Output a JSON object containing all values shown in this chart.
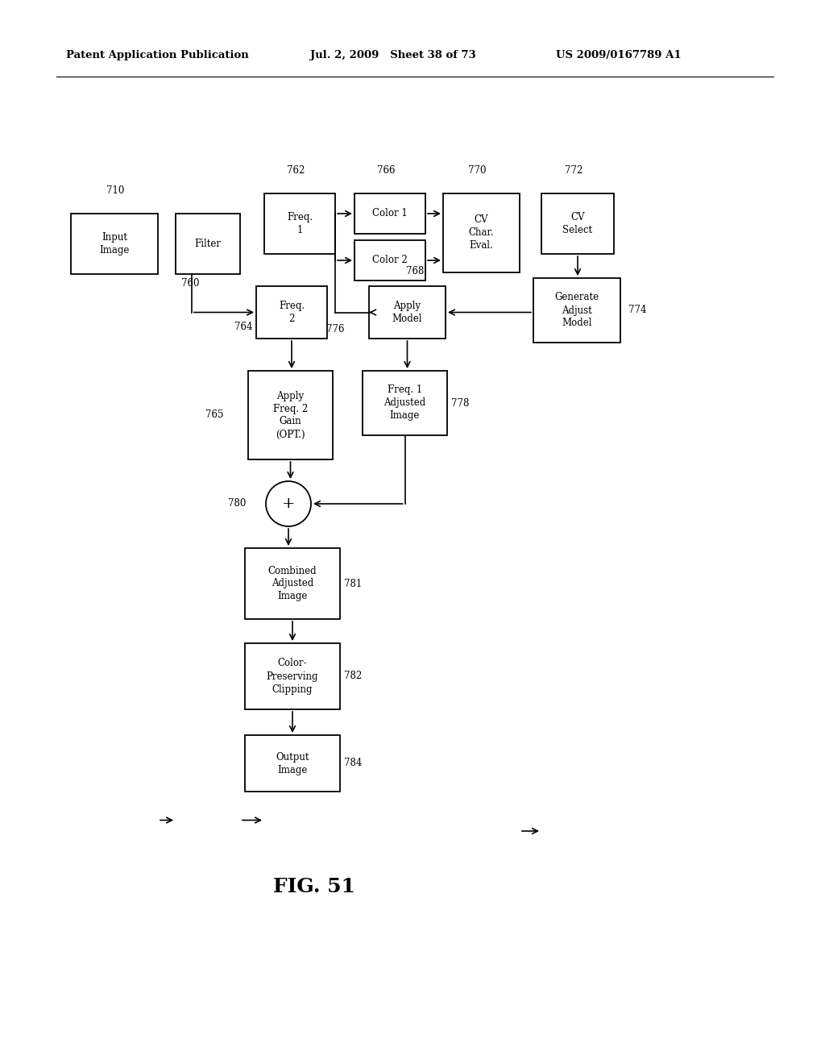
{
  "header_left": "Patent Application Publication",
  "header_mid": "Jul. 2, 2009   Sheet 38 of 73",
  "header_right": "US 2009/0167789 A1",
  "fig_label": "FIG. 51",
  "bg_color": "#ffffff",
  "font_size_box": 8.5,
  "font_size_tag": 8.5,
  "font_size_header": 9.5,
  "font_size_fig": 18
}
